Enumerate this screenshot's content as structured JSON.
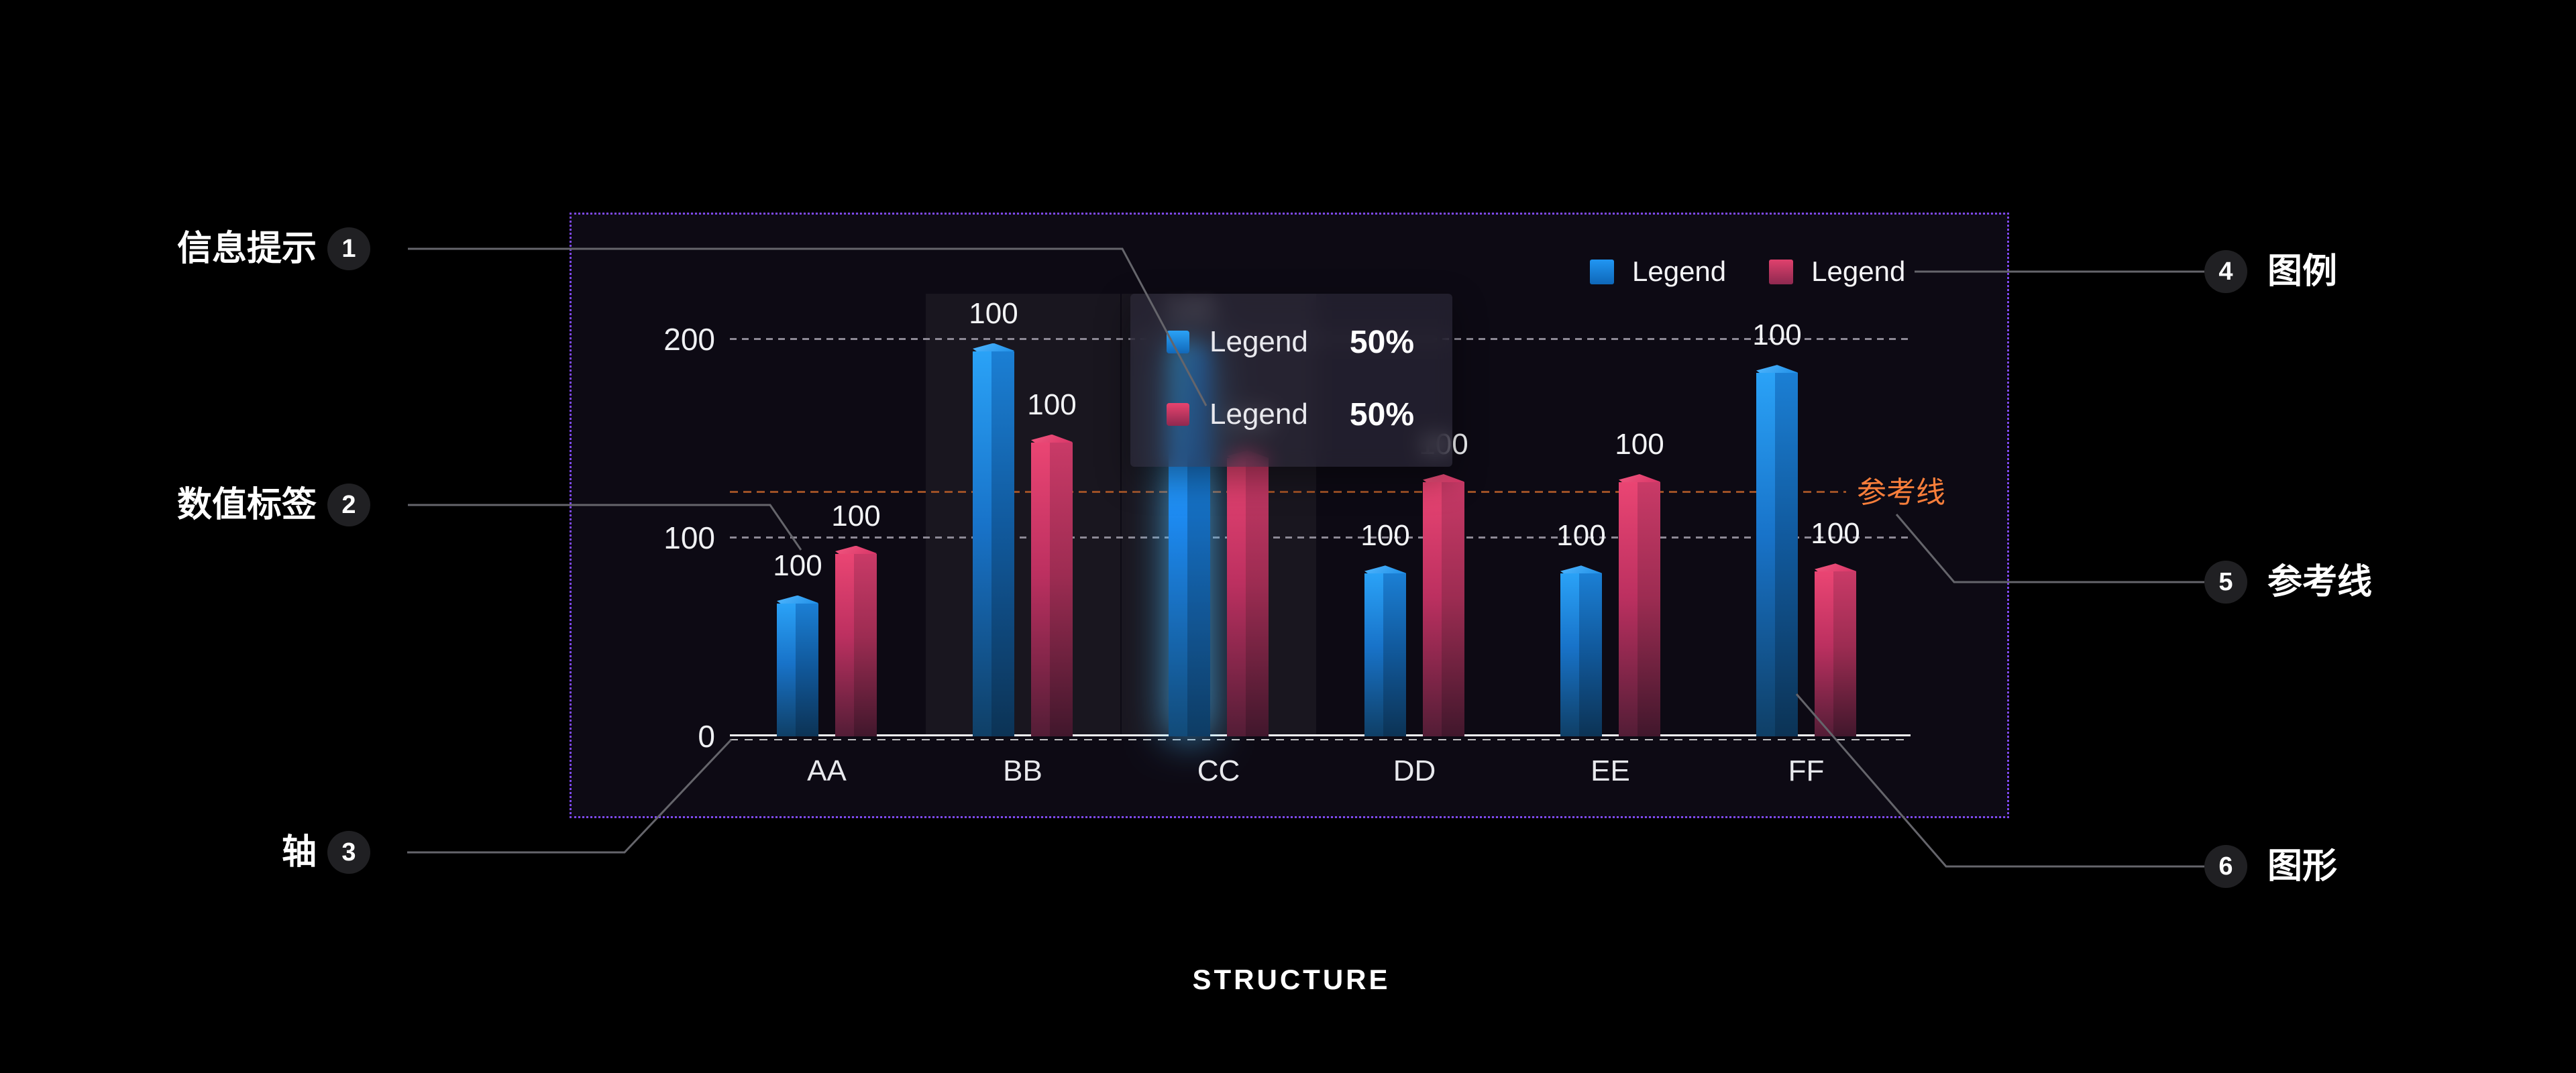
{
  "title": "STRUCTURE",
  "annotations": {
    "left": [
      {
        "num": "1",
        "label": "信息提示"
      },
      {
        "num": "2",
        "label": "数值标签"
      },
      {
        "num": "3",
        "label": "轴"
      }
    ],
    "right": [
      {
        "num": "4",
        "label": "图例"
      },
      {
        "num": "5",
        "label": "参考线"
      },
      {
        "num": "6",
        "label": "图形"
      }
    ]
  },
  "legend": {
    "items": [
      {
        "label": "Legend",
        "color": "#2196f3"
      },
      {
        "label": "Legend",
        "color": "#e0416d"
      }
    ]
  },
  "tooltip": {
    "rows": [
      {
        "label": "Legend",
        "value": "50%",
        "color": "#2aa2f7"
      },
      {
        "label": "Legend",
        "value": "50%",
        "color": "#e8436e"
      }
    ]
  },
  "chart_data": {
    "type": "bar",
    "title": "STRUCTURE",
    "categories": [
      "AA",
      "BB",
      "CC",
      "DD",
      "EE",
      "FF"
    ],
    "series": [
      {
        "name": "Legend",
        "color": "#2196f3",
        "values": [
          71,
          198,
          199,
          86,
          86,
          187
        ]
      },
      {
        "name": "Legend",
        "color": "#e0416d",
        "values": [
          96,
          152,
          144,
          132,
          132,
          87
        ]
      }
    ],
    "value_label_text": "100",
    "yticks": [
      "0",
      "100",
      "200"
    ],
    "ylim": [
      0,
      265
    ],
    "grid": "dashed horizontal",
    "legend_position": "top-right",
    "reference_line": {
      "label": "参考线",
      "value": 123,
      "color": "#f87e3b"
    },
    "hover_category_index": 2,
    "band_category_indices": [
      1,
      2
    ],
    "blurred_label_category_index": 2
  }
}
